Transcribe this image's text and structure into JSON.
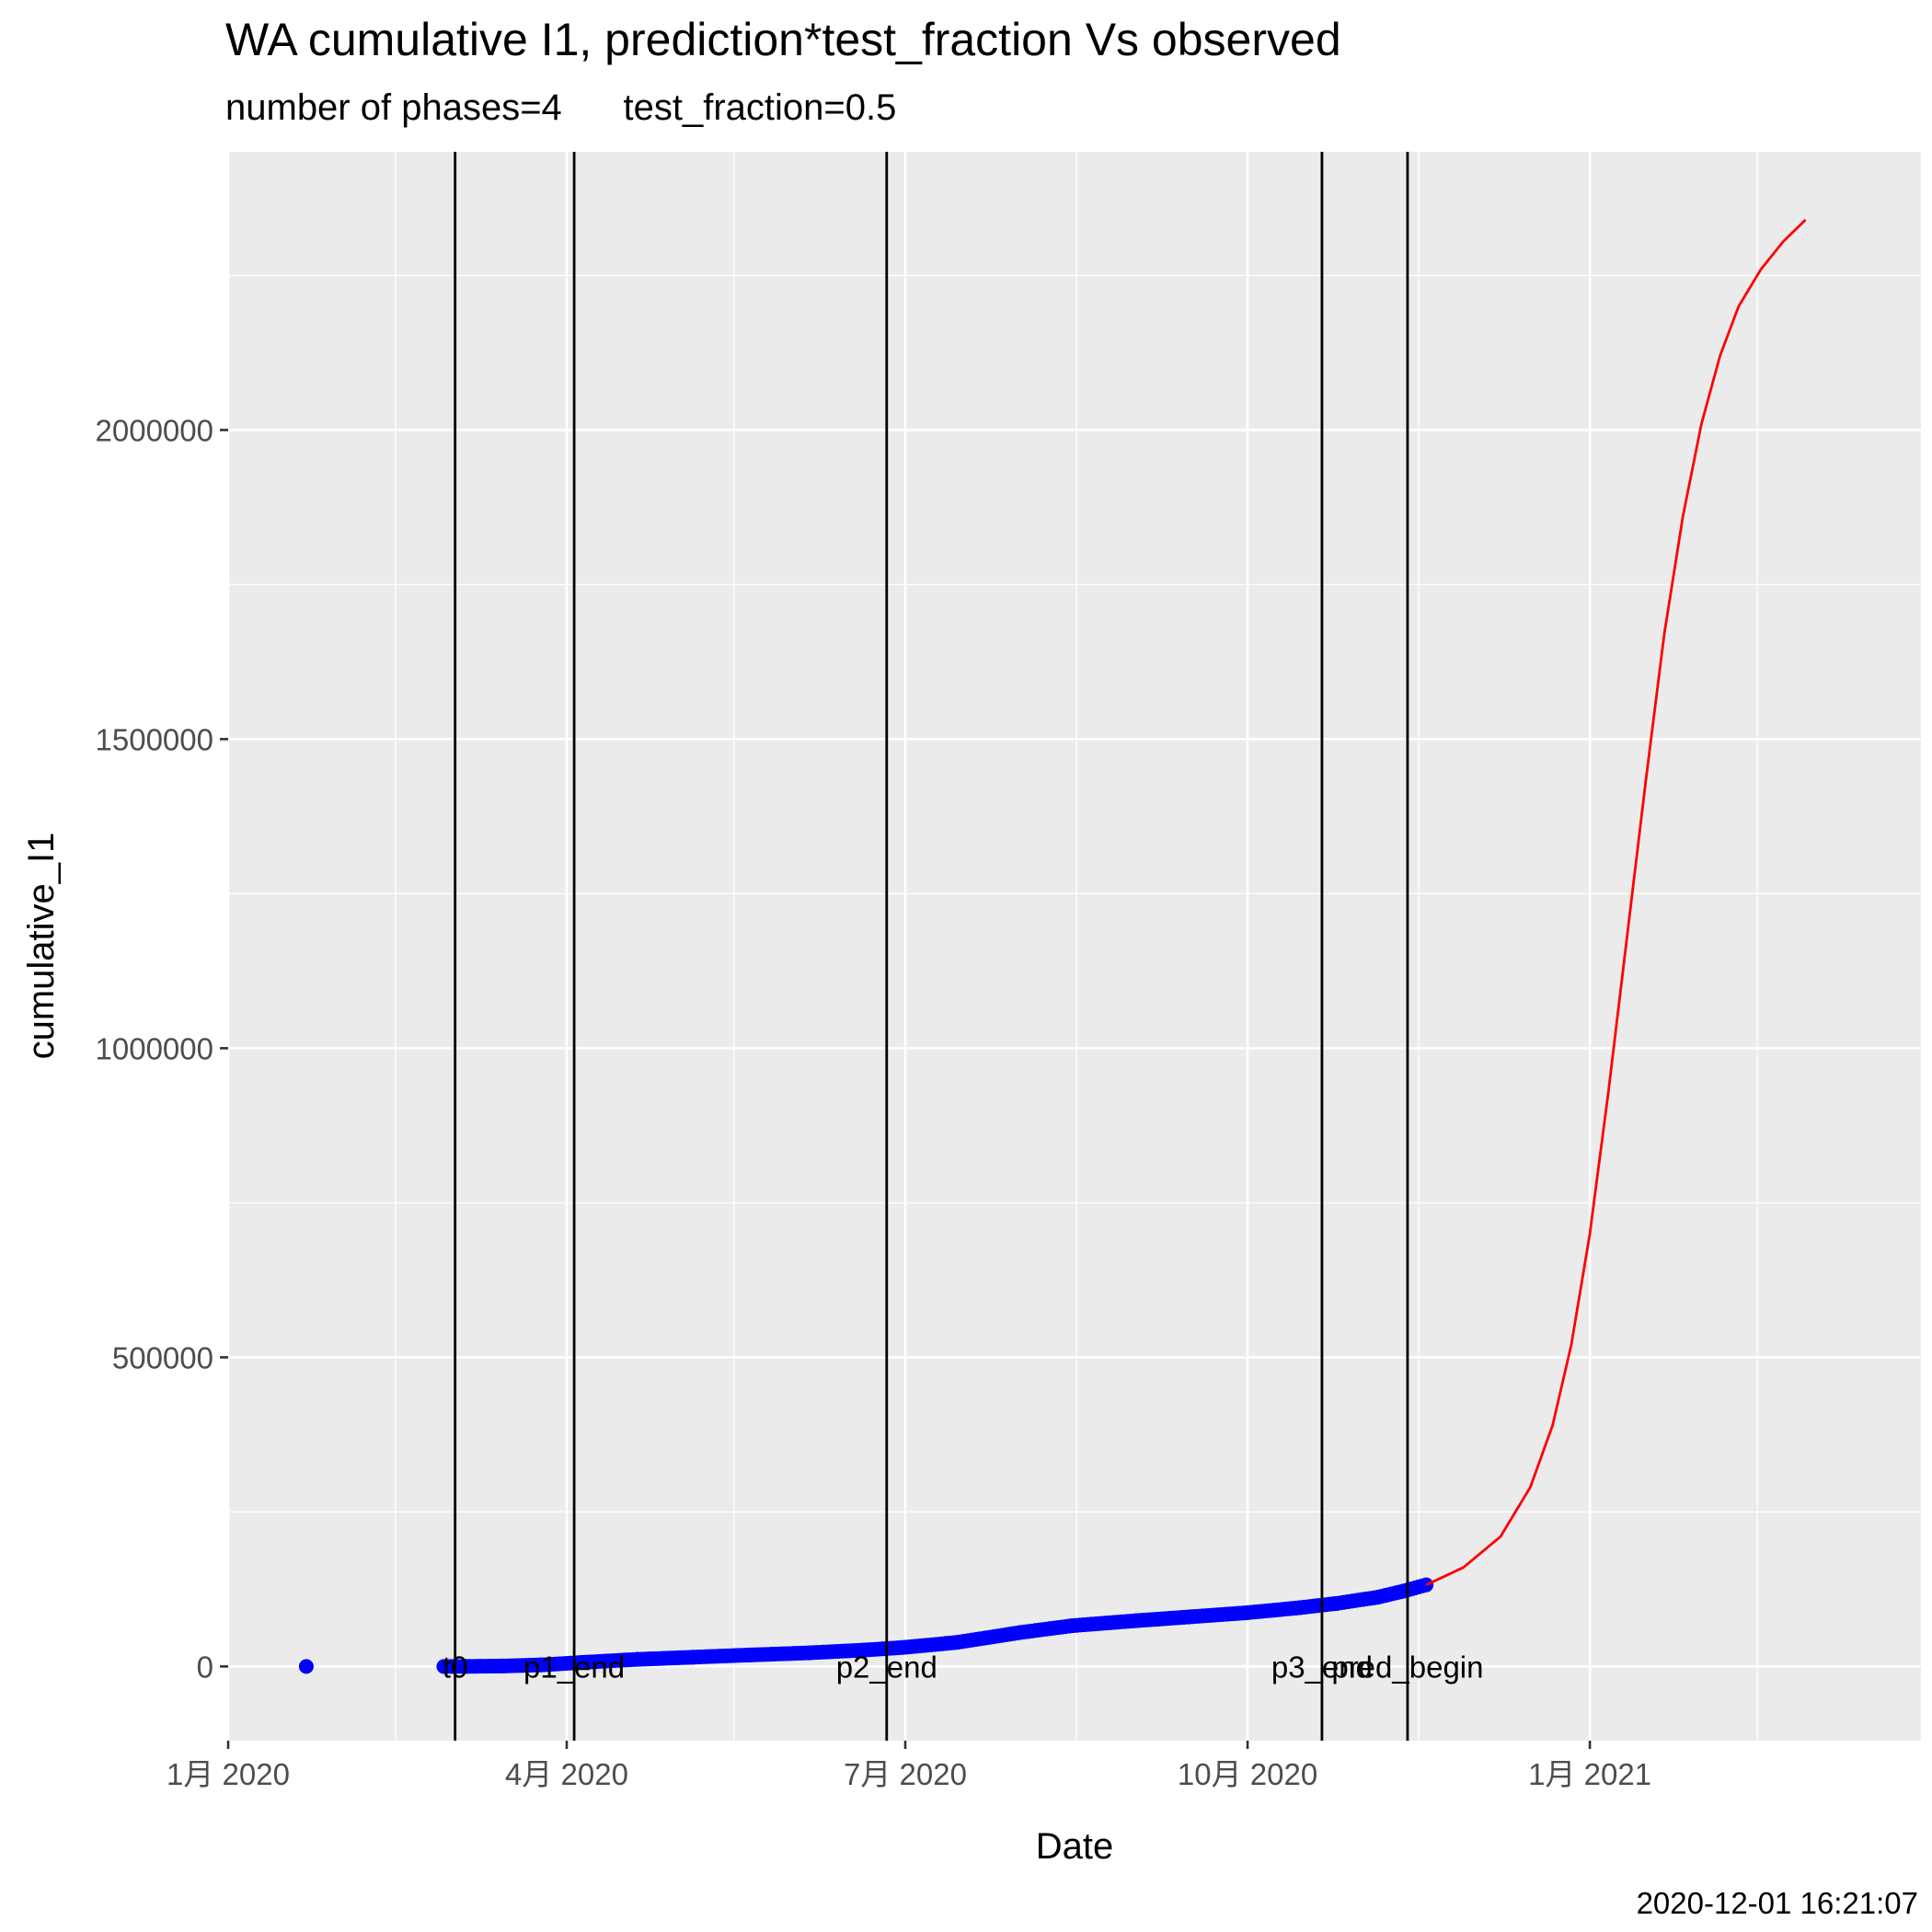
{
  "chart_data": {
    "type": "scatter",
    "title": "WA cumulative I1,  prediction*test_fraction Vs observed",
    "subtitle": "number of phases=4      test_fraction=0.5",
    "xlabel": "Date",
    "ylabel": "cumulative_I1",
    "caption": "2020-12-01 16:21:07",
    "x_scale": "date",
    "xlim": [
      "2020-01-01",
      "2021-03-31"
    ],
    "ylim": [
      -120000,
      2450000
    ],
    "grid": true,
    "x_ticks": [
      {
        "value": "2020-01-01",
        "label": "1月 2020"
      },
      {
        "value": "2020-04-01",
        "label": "4月 2020"
      },
      {
        "value": "2020-07-01",
        "label": "7月 2020"
      },
      {
        "value": "2020-10-01",
        "label": "10月 2020"
      },
      {
        "value": "2021-01-01",
        "label": "1月 2021"
      }
    ],
    "x_minor": [
      "2020-02-15",
      "2020-05-16",
      "2020-08-16",
      "2020-11-16",
      "2021-02-15"
    ],
    "y_ticks": [
      {
        "value": 0,
        "label": "0"
      },
      {
        "value": 500000,
        "label": "500000"
      },
      {
        "value": 1000000,
        "label": "1000000"
      },
      {
        "value": 1500000,
        "label": "1500000"
      },
      {
        "value": 2000000,
        "label": "2000000"
      }
    ],
    "y_minor": [
      250000,
      750000,
      1250000,
      1750000,
      2250000
    ],
    "vlines": [
      {
        "x": "2020-03-02",
        "label": "t0"
      },
      {
        "x": "2020-04-03",
        "label": "p1_end"
      },
      {
        "x": "2020-06-26",
        "label": "p2_end"
      },
      {
        "x": "2020-10-21",
        "label": "p3_end"
      },
      {
        "x": "2020-11-13",
        "label": "pred_begin"
      }
    ],
    "series": [
      {
        "color": "#0000ff",
        "kind": "points",
        "points": [
          [
            "2020-01-22",
            1
          ],
          [
            "2020-02-28",
            1
          ],
          [
            "2020-03-05",
            80
          ],
          [
            "2020-03-15",
            700
          ],
          [
            "2020-03-25",
            2500
          ],
          [
            "2020-04-05",
            6500
          ],
          [
            "2020-04-20",
            11500
          ],
          [
            "2020-05-05",
            15000
          ],
          [
            "2020-05-20",
            18500
          ],
          [
            "2020-06-05",
            22000
          ],
          [
            "2020-06-20",
            26500
          ],
          [
            "2020-07-01",
            31000
          ],
          [
            "2020-07-15",
            39000
          ],
          [
            "2020-08-01",
            55000
          ],
          [
            "2020-08-15",
            66000
          ],
          [
            "2020-09-01",
            74000
          ],
          [
            "2020-09-15",
            80000
          ],
          [
            "2020-10-01",
            87000
          ],
          [
            "2020-10-15",
            95000
          ],
          [
            "2020-10-25",
            102000
          ],
          [
            "2020-11-05",
            112000
          ],
          [
            "2020-11-12",
            122000
          ],
          [
            "2020-11-18",
            132000
          ]
        ]
      },
      {
        "color": "#ff0000",
        "kind": "line",
        "points": [
          [
            "2020-11-18",
            132000
          ],
          [
            "2020-11-28",
            160000
          ],
          [
            "2020-12-08",
            210000
          ],
          [
            "2020-12-16",
            290000
          ],
          [
            "2020-12-22",
            390000
          ],
          [
            "2020-12-27",
            520000
          ],
          [
            "2021-01-01",
            700000
          ],
          [
            "2021-01-06",
            930000
          ],
          [
            "2021-01-11",
            1180000
          ],
          [
            "2021-01-16",
            1430000
          ],
          [
            "2021-01-21",
            1670000
          ],
          [
            "2021-01-26",
            1860000
          ],
          [
            "2021-01-31",
            2010000
          ],
          [
            "2021-02-05",
            2120000
          ],
          [
            "2021-02-10",
            2200000
          ],
          [
            "2021-02-16",
            2260000
          ],
          [
            "2021-02-22",
            2305000
          ],
          [
            "2021-02-28",
            2340000
          ]
        ]
      }
    ]
  }
}
